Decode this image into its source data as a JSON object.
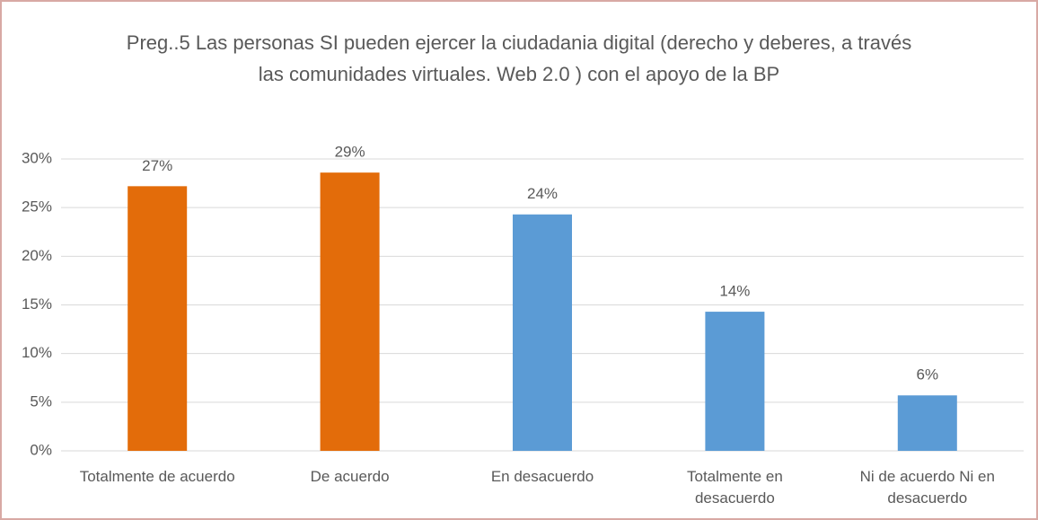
{
  "chart_data": {
    "type": "bar",
    "title": "Preg..5  Las personas  SI  pueden ejercer la ciudadania digital (derecho y deberes, a través  las comunidades virtuales. Web 2.0 ) con el apoyo de la BP",
    "categories": [
      "Totalmente de acuerdo",
      "De acuerdo",
      "En desacuerdo",
      "Totalmente en desacuerdo",
      "Ni de acuerdo Ni en desacuerdo"
    ],
    "values": [
      27.2,
      28.6,
      24.3,
      14.3,
      5.7
    ],
    "value_labels": [
      "27%",
      "29%",
      "24%",
      "14%",
      "6%"
    ],
    "colors": [
      "#e36c0a",
      "#e36c0a",
      "#5b9bd5",
      "#5b9bd5",
      "#5b9bd5"
    ],
    "ylim": [
      0,
      30
    ],
    "yticks": [
      {
        "value": 0,
        "label": "0%"
      },
      {
        "value": 5,
        "label": "5%"
      },
      {
        "value": 10,
        "label": "10%"
      },
      {
        "value": 15,
        "label": "15%"
      },
      {
        "value": 20,
        "label": "20%"
      },
      {
        "value": 25,
        "label": "25%"
      },
      {
        "value": 30,
        "label": "30%"
      }
    ],
    "grid": true
  }
}
